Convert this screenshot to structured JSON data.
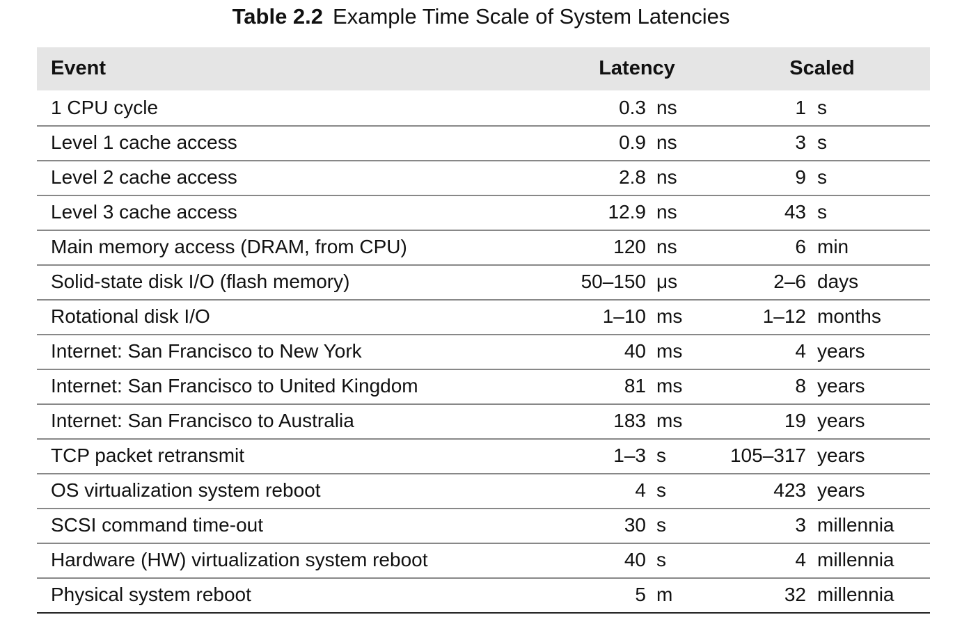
{
  "title": {
    "label": "Table 2.2",
    "text": "Example Time Scale of System Latencies"
  },
  "table": {
    "header": [
      "Event",
      "Latency",
      "Scaled"
    ],
    "rows": [
      [
        "1 CPU cycle",
        "0.3",
        "ns",
        "1",
        "s"
      ],
      [
        "Level 1 cache access",
        "0.9",
        "ns",
        "3",
        "s"
      ],
      [
        "Level 2 cache access",
        "2.8",
        "ns",
        "9",
        "s"
      ],
      [
        "Level 3 cache access",
        "12.9",
        "ns",
        "43",
        "s"
      ],
      [
        "Main memory access (DRAM, from CPU)",
        "120",
        "ns",
        "6",
        "min"
      ],
      [
        "Solid-state disk I/O (flash memory)",
        "50–150",
        "μs",
        "2–6",
        "days"
      ],
      [
        "Rotational disk I/O",
        "1–10",
        "ms",
        "1–12",
        "months"
      ],
      [
        "Internet: San Francisco to New York",
        "40",
        "ms",
        "4",
        "years"
      ],
      [
        "Internet: San Francisco to United Kingdom",
        "81",
        "ms",
        "8",
        "years"
      ],
      [
        "Internet: San Francisco to Australia",
        "183",
        "ms",
        "19",
        "years"
      ],
      [
        "TCP packet retransmit",
        "1–3",
        "s",
        "105–317",
        "years"
      ],
      [
        "OS virtualization system reboot",
        "4",
        "s",
        "423",
        "years"
      ],
      [
        "SCSI command time-out",
        "30",
        "s",
        "3",
        "millennia"
      ],
      [
        "Hardware (HW) virtualization system reboot",
        "40",
        "s",
        "4",
        "millennia"
      ],
      [
        "Physical system reboot",
        "5",
        "m",
        "32",
        "millennia"
      ]
    ]
  }
}
